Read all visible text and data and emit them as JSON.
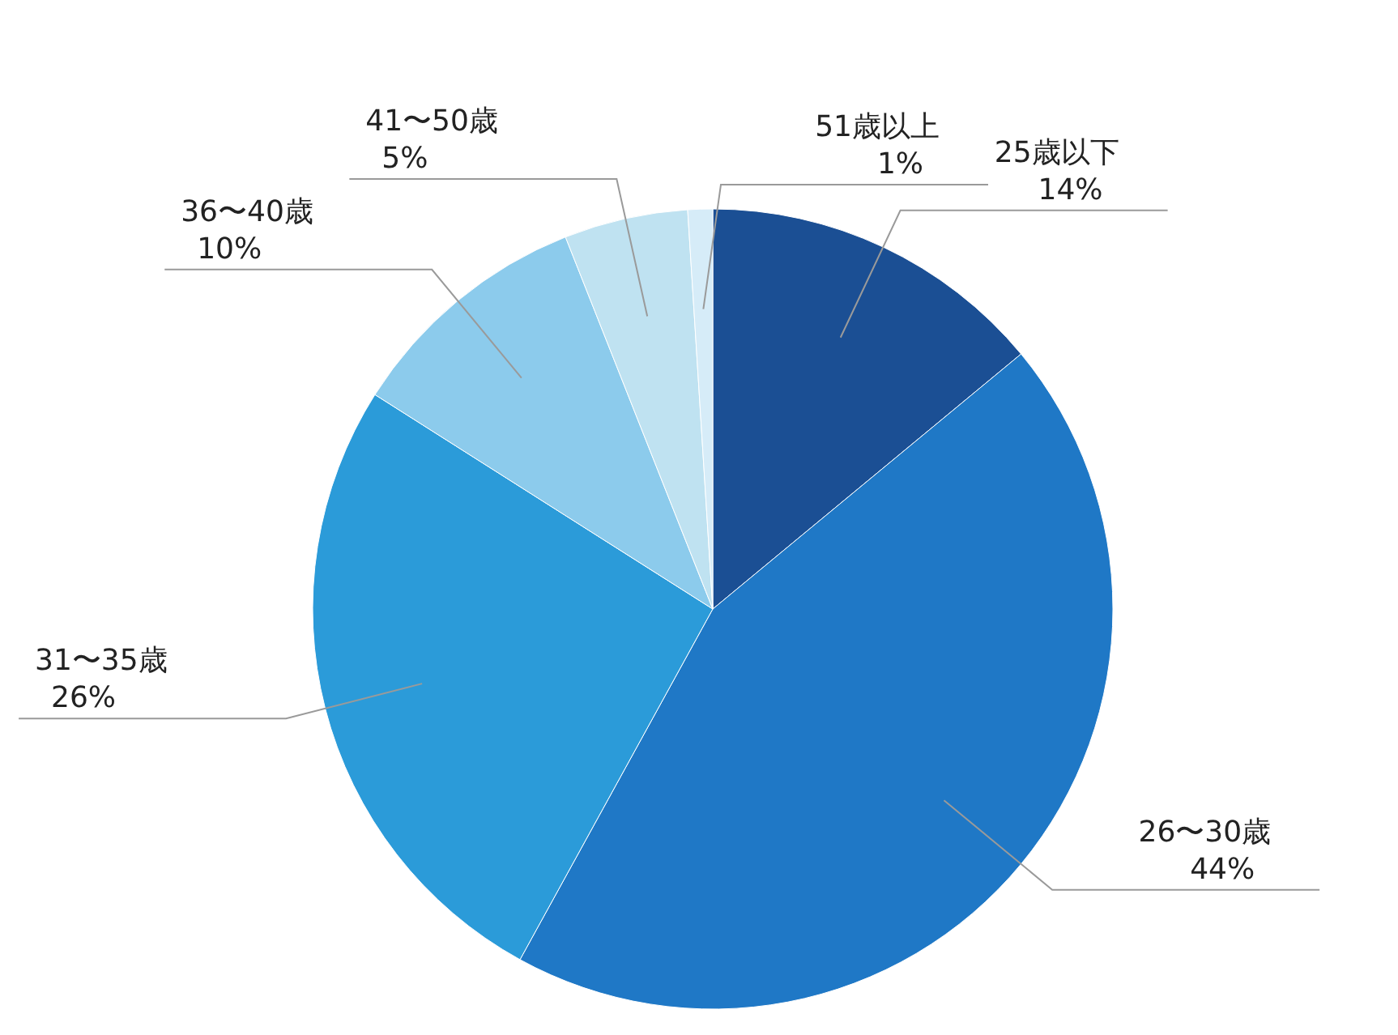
{
  "chart_data": {
    "type": "pie",
    "categories": [
      "25歳以下",
      "26〜30歳",
      "31〜35歳",
      "36〜40歳",
      "41〜50歳",
      "51歳以上"
    ],
    "values": [
      14,
      44,
      26,
      10,
      5,
      1
    ],
    "colors": [
      "#1b4f94",
      "#1f78c6",
      "#2b9bd9",
      "#8ccbec",
      "#bfe2f1",
      "#d6ecf8"
    ],
    "value_labels": [
      "14%",
      "44%",
      "26%",
      "10%",
      "5%",
      "1%"
    ]
  }
}
